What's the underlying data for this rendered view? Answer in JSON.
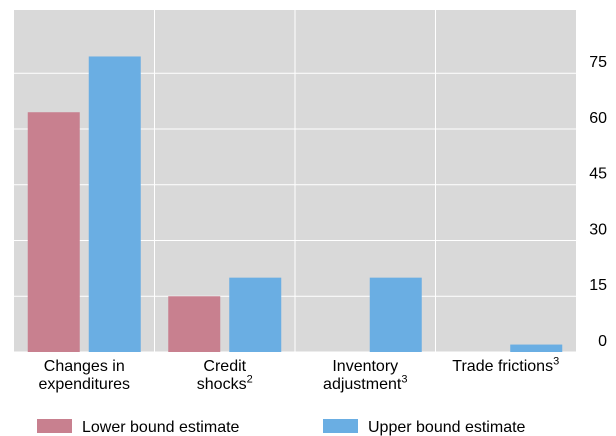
{
  "chart_data": {
    "type": "bar",
    "categories": [
      "Changes in expenditures",
      "Credit shocks",
      "Inventory adjustment",
      "Trade frictions"
    ],
    "category_notes": [
      null,
      "2",
      "3",
      "3"
    ],
    "series": [
      {
        "name": "Lower bound estimate",
        "color": "#c8808f",
        "values": [
          64.5,
          15,
          null,
          null
        ]
      },
      {
        "name": "Upper bound estimate",
        "color": "#6aaee3",
        "values": [
          79.5,
          20,
          20,
          2
        ]
      }
    ],
    "ylim": [
      0,
      92
    ],
    "yticks": [
      0,
      15,
      30,
      45,
      60,
      75
    ],
    "grid": true,
    "y_axis_side": "right"
  }
}
